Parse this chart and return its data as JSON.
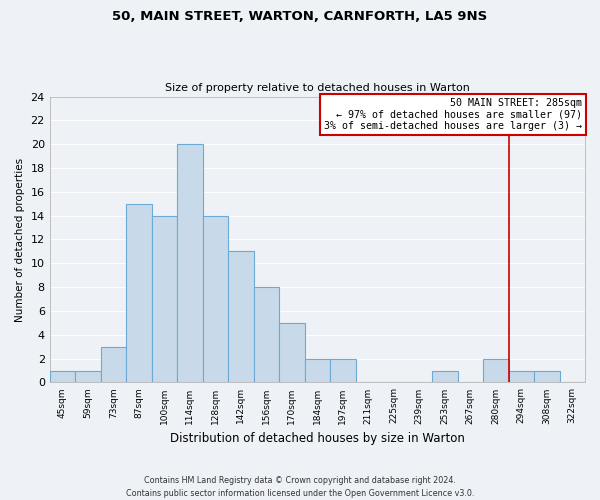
{
  "title": "50, MAIN STREET, WARTON, CARNFORTH, LA5 9NS",
  "subtitle": "Size of property relative to detached houses in Warton",
  "xlabel": "Distribution of detached houses by size in Warton",
  "ylabel": "Number of detached properties",
  "bar_color": "#c8daea",
  "bar_edge_color": "#6aaad4",
  "background_color": "#eef2f7",
  "grid_color": "#ffffff",
  "bin_labels": [
    "45sqm",
    "59sqm",
    "73sqm",
    "87sqm",
    "100sqm",
    "114sqm",
    "128sqm",
    "142sqm",
    "156sqm",
    "170sqm",
    "184sqm",
    "197sqm",
    "211sqm",
    "225sqm",
    "239sqm",
    "253sqm",
    "267sqm",
    "280sqm",
    "294sqm",
    "308sqm",
    "322sqm"
  ],
  "bin_counts": [
    1,
    1,
    3,
    15,
    14,
    20,
    14,
    11,
    8,
    5,
    2,
    2,
    0,
    0,
    0,
    1,
    0,
    2,
    1,
    1,
    0
  ],
  "ylim": [
    0,
    24
  ],
  "yticks": [
    0,
    2,
    4,
    6,
    8,
    10,
    12,
    14,
    16,
    18,
    20,
    22,
    24
  ],
  "annotation_title": "50 MAIN STREET: 285sqm",
  "annotation_line1": "← 97% of detached houses are smaller (97)",
  "annotation_line2": "3% of semi-detached houses are larger (3) →",
  "annotation_box_color": "#ffffff",
  "annotation_border_color": "#cc0000",
  "vline_color": "#cc0000",
  "footer_line1": "Contains HM Land Registry data © Crown copyright and database right 2024.",
  "footer_line2": "Contains public sector information licensed under the Open Government Licence v3.0."
}
